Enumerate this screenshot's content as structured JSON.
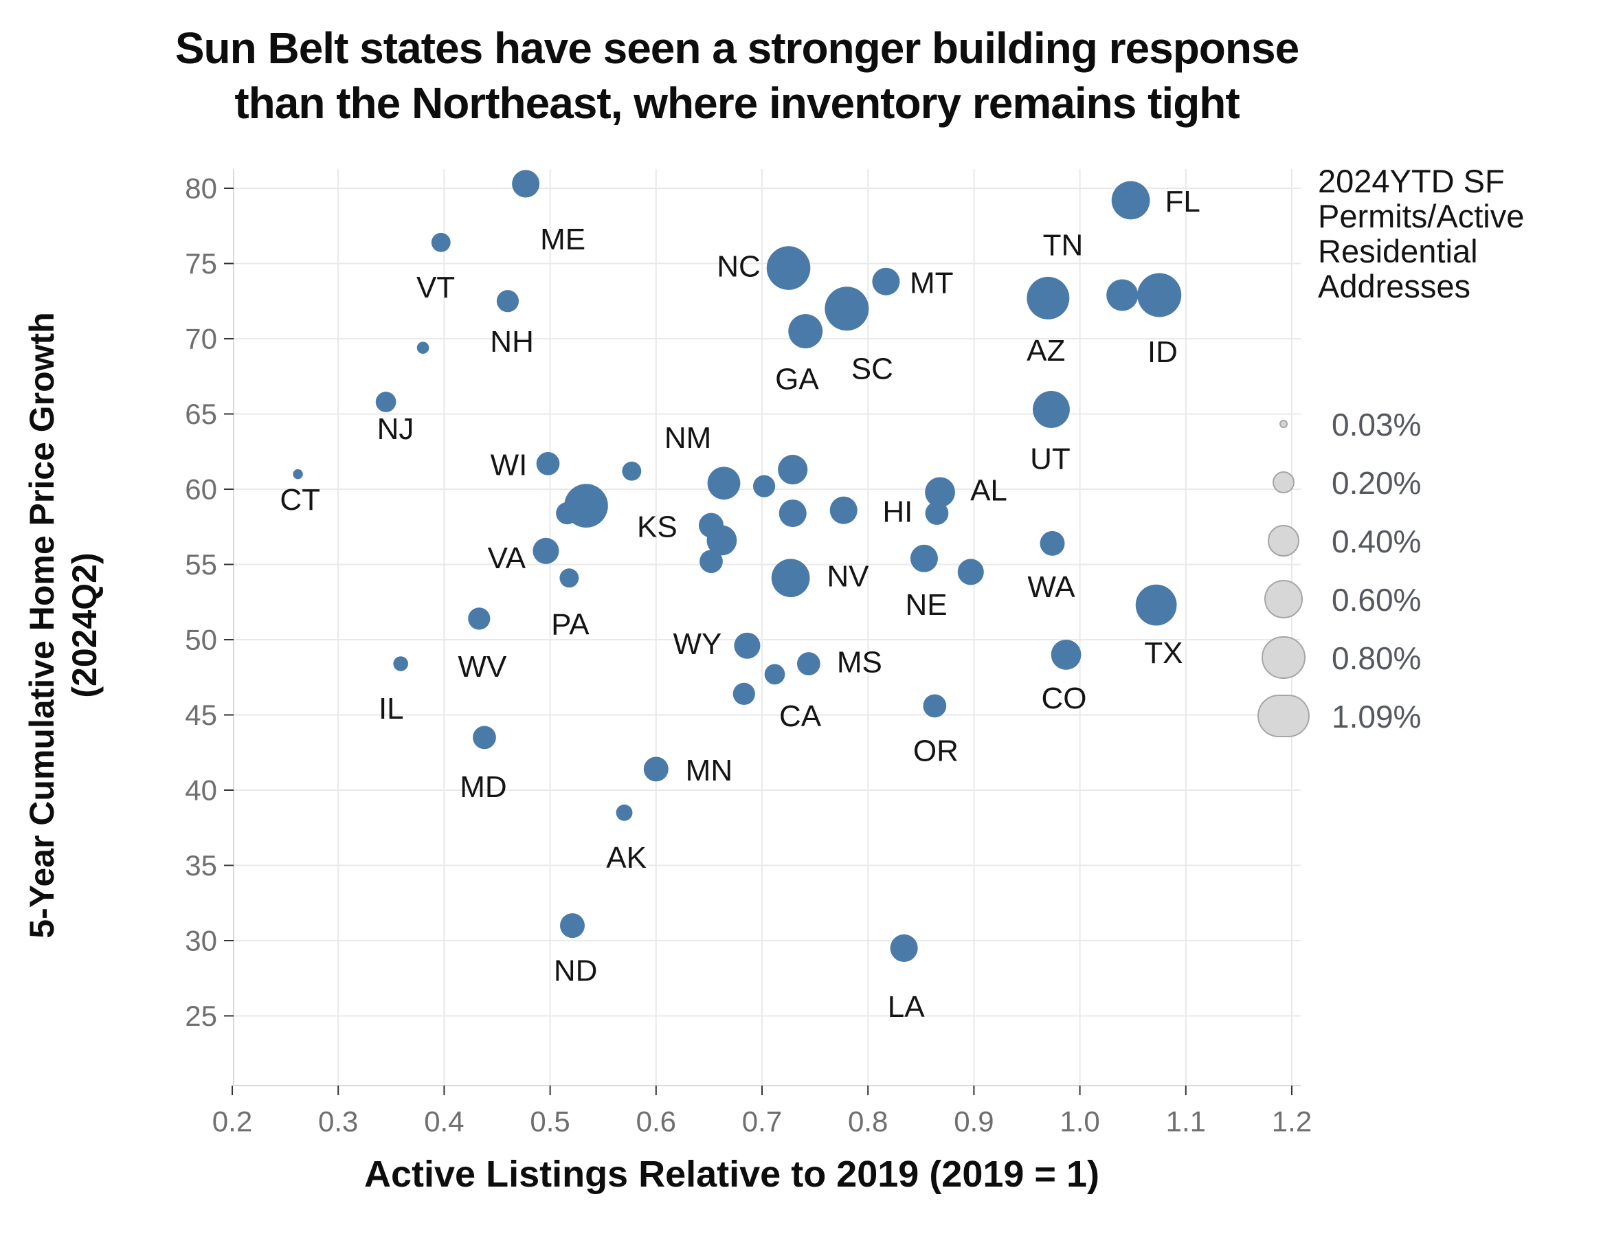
{
  "title": {
    "line1": "Sun Belt states have seen a stronger building response",
    "line2": "than the Northeast, where inventory remains tight"
  },
  "axes": {
    "x_title": "Active Listings Relative to 2019 (2019 = 1)",
    "y_title_line1": "5-Year Cumulative Home Price Growth",
    "y_title_line2": "(2024Q2)",
    "x_ticks": [
      0.2,
      0.3,
      0.4,
      0.5,
      0.6,
      0.7,
      0.8,
      0.9,
      1.0,
      1.1,
      1.2
    ],
    "y_ticks": [
      80,
      75,
      70,
      65,
      60,
      55,
      50,
      45,
      40,
      35,
      30,
      25
    ]
  },
  "legend": {
    "title_lines": [
      "2024YTD SF",
      "Permits/Active",
      "Residential",
      "Addresses"
    ],
    "sizes": [
      {
        "label": "0.03%",
        "value": 0.03
      },
      {
        "label": "0.20%",
        "value": 0.2
      },
      {
        "label": "0.40%",
        "value": 0.4
      },
      {
        "label": "0.60%",
        "value": 0.6
      },
      {
        "label": "0.80%",
        "value": 0.8
      },
      {
        "label": "1.09%",
        "value": 1.09
      }
    ]
  },
  "colors": {
    "bubble": "#4a7aa8",
    "grid": "#e9e9e9",
    "panel_border": "#d9d9d9",
    "tick_mark": "#333333",
    "tick_text": "#6f6f6f",
    "state_label": "#141414",
    "legend_circle_fill": "#d7d7d7",
    "legend_circle_stroke": "#a6a6a6"
  },
  "chart_data": {
    "type": "scatter",
    "subtype": "bubble",
    "title": "Sun Belt states have seen a stronger building response than the Northeast, where inventory remains tight",
    "xlabel": "Active Listings Relative to 2019 (2019 = 1)",
    "ylabel": "5-Year Cumulative Home Price Growth (2024Q2)",
    "size_label": "2024YTD SF Permits/Active Residential Addresses (%)",
    "xlim": [
      0.2,
      1.2
    ],
    "ylim": [
      25,
      80
    ],
    "grid": true,
    "legend_position": "right",
    "points": [
      {
        "state": "ME",
        "x": 0.477,
        "y": 80.3,
        "size": 0.31,
        "label_x": 0.512,
        "label_y": 76.6
      },
      {
        "state": "VT",
        "x": 0.397,
        "y": 76.4,
        "size": 0.15,
        "label_x": 0.392,
        "label_y": 73.4
      },
      {
        "state": "NH",
        "x": 0.46,
        "y": 72.5,
        "size": 0.2,
        "label_x": 0.464,
        "label_y": 69.8
      },
      {
        "state": "NJ",
        "x": 0.345,
        "y": 65.8,
        "size": 0.17,
        "label_x": 0.354,
        "label_y": 64.0
      },
      {
        "state": "CT",
        "x": 0.262,
        "y": 61.0,
        "size": 0.04,
        "label_x": 0.264,
        "label_y": 59.3
      },
      {
        "state": "WI",
        "x": 0.498,
        "y": 61.7,
        "size": 0.22,
        "label_x": 0.461,
        "label_y": 61.6
      },
      {
        "state": "NM",
        "x": 0.664,
        "y": 60.4,
        "size": 0.44,
        "label_x": 0.63,
        "label_y": 63.4
      },
      {
        "state": "KS",
        "x": 0.652,
        "y": 57.6,
        "size": 0.25,
        "label_x": 0.601,
        "label_y": 57.5
      },
      {
        "state": "VA",
        "x": 0.496,
        "y": 55.9,
        "size": 0.28,
        "label_x": 0.459,
        "label_y": 55.4
      },
      {
        "state": "PA",
        "x": 0.518,
        "y": 54.1,
        "size": 0.15,
        "label_x": 0.519,
        "label_y": 51.0
      },
      {
        "state": "WV",
        "x": 0.433,
        "y": 51.4,
        "size": 0.2,
        "label_x": 0.436,
        "label_y": 48.2
      },
      {
        "state": "IL",
        "x": 0.359,
        "y": 48.4,
        "size": 0.09,
        "label_x": 0.35,
        "label_y": 45.4
      },
      {
        "state": "MD",
        "x": 0.438,
        "y": 43.5,
        "size": 0.22,
        "label_x": 0.437,
        "label_y": 40.2
      },
      {
        "state": "MN",
        "x": 0.6,
        "y": 41.4,
        "size": 0.25,
        "label_x": 0.65,
        "label_y": 41.3
      },
      {
        "state": "AK",
        "x": 0.57,
        "y": 38.5,
        "size": 0.11,
        "label_x": 0.572,
        "label_y": 35.5
      },
      {
        "state": "ND",
        "x": 0.521,
        "y": 31.0,
        "size": 0.25,
        "label_x": 0.524,
        "label_y": 28.0
      },
      {
        "state": "LA",
        "x": 0.834,
        "y": 29.5,
        "size": 0.31,
        "label_x": 0.836,
        "label_y": 25.6
      },
      {
        "state": "NC",
        "x": 0.725,
        "y": 74.7,
        "size": 0.78,
        "label_x": 0.678,
        "label_y": 74.8
      },
      {
        "state": "GA",
        "x": 0.741,
        "y": 70.5,
        "size": 0.48,
        "label_x": 0.733,
        "label_y": 67.3
      },
      {
        "state": "SC",
        "x": 0.78,
        "y": 72.0,
        "size": 0.79,
        "label_x": 0.804,
        "label_y": 68.0
      },
      {
        "state": "MT",
        "x": 0.817,
        "y": 73.8,
        "size": 0.31,
        "label_x": 0.86,
        "label_y": 73.7
      },
      {
        "state": "TN",
        "x": 0.97,
        "y": 72.7,
        "size": 0.74,
        "label_x": 0.984,
        "label_y": 76.2
      },
      {
        "state": "AZ",
        "x": 0.97,
        "y": 72.5,
        "size": 0.52,
        "label_x": 0.968,
        "label_y": 69.2
      },
      {
        "state": "ID",
        "x": 1.075,
        "y": 72.9,
        "size": 0.79,
        "label_x": 1.078,
        "label_y": 69.1
      },
      {
        "state": "FL",
        "x": 1.048,
        "y": 79.2,
        "size": 0.6,
        "label_x": 1.097,
        "label_y": 79.1
      },
      {
        "state": "UT",
        "x": 0.973,
        "y": 65.3,
        "size": 0.56,
        "label_x": 0.972,
        "label_y": 62.0
      },
      {
        "state": "AL",
        "x": 0.868,
        "y": 59.8,
        "size": 0.37,
        "label_x": 0.914,
        "label_y": 59.9
      },
      {
        "state": "HI",
        "x": 0.865,
        "y": 58.4,
        "size": 0.22,
        "label_x": 0.828,
        "label_y": 58.5
      },
      {
        "state": "NV",
        "x": 0.727,
        "y": 54.1,
        "size": 0.6,
        "label_x": 0.781,
        "label_y": 54.2
      },
      {
        "state": "NE",
        "x": 0.853,
        "y": 55.4,
        "size": 0.31,
        "label_x": 0.855,
        "label_y": 52.3
      },
      {
        "state": "WA",
        "x": 0.974,
        "y": 56.4,
        "size": 0.25,
        "label_x": 0.973,
        "label_y": 53.5
      },
      {
        "state": "WY",
        "x": 0.686,
        "y": 49.6,
        "size": 0.28,
        "label_x": 0.639,
        "label_y": 49.7
      },
      {
        "state": "MS",
        "x": 0.744,
        "y": 48.4,
        "size": 0.22,
        "label_x": 0.792,
        "label_y": 48.5
      },
      {
        "state": "CA",
        "x": 0.712,
        "y": 47.7,
        "size": 0.17,
        "label_x": 0.736,
        "label_y": 44.9
      },
      {
        "state": "OR",
        "x": 0.863,
        "y": 45.6,
        "size": 0.22,
        "label_x": 0.864,
        "label_y": 42.6
      },
      {
        "state": "CO",
        "x": 0.987,
        "y": 49.0,
        "size": 0.37,
        "label_x": 0.985,
        "label_y": 46.1
      },
      {
        "state": "TX",
        "x": 1.072,
        "y": 52.3,
        "size": 0.69,
        "label_x": 1.079,
        "label_y": 49.1
      },
      {
        "state": "",
        "x": 0.38,
        "y": 69.4,
        "size": 0.06
      },
      {
        "state": "",
        "x": 0.577,
        "y": 61.2,
        "size": 0.15
      },
      {
        "state": "",
        "x": 0.534,
        "y": 58.9,
        "size": 0.78
      },
      {
        "state": "",
        "x": 0.516,
        "y": 58.4,
        "size": 0.2
      },
      {
        "state": "",
        "x": 0.702,
        "y": 60.2,
        "size": 0.2
      },
      {
        "state": "",
        "x": 0.729,
        "y": 61.3,
        "size": 0.36
      },
      {
        "state": "",
        "x": 0.729,
        "y": 58.4,
        "size": 0.31
      },
      {
        "state": "",
        "x": 0.777,
        "y": 58.6,
        "size": 0.31
      },
      {
        "state": "",
        "x": 0.897,
        "y": 54.5,
        "size": 0.28
      },
      {
        "state": "",
        "x": 0.662,
        "y": 56.6,
        "size": 0.37
      },
      {
        "state": "",
        "x": 0.652,
        "y": 55.2,
        "size": 0.22
      },
      {
        "state": "",
        "x": 1.04,
        "y": 72.9,
        "size": 0.41
      },
      {
        "state": "",
        "x": 0.683,
        "y": 46.4,
        "size": 0.2
      }
    ]
  }
}
